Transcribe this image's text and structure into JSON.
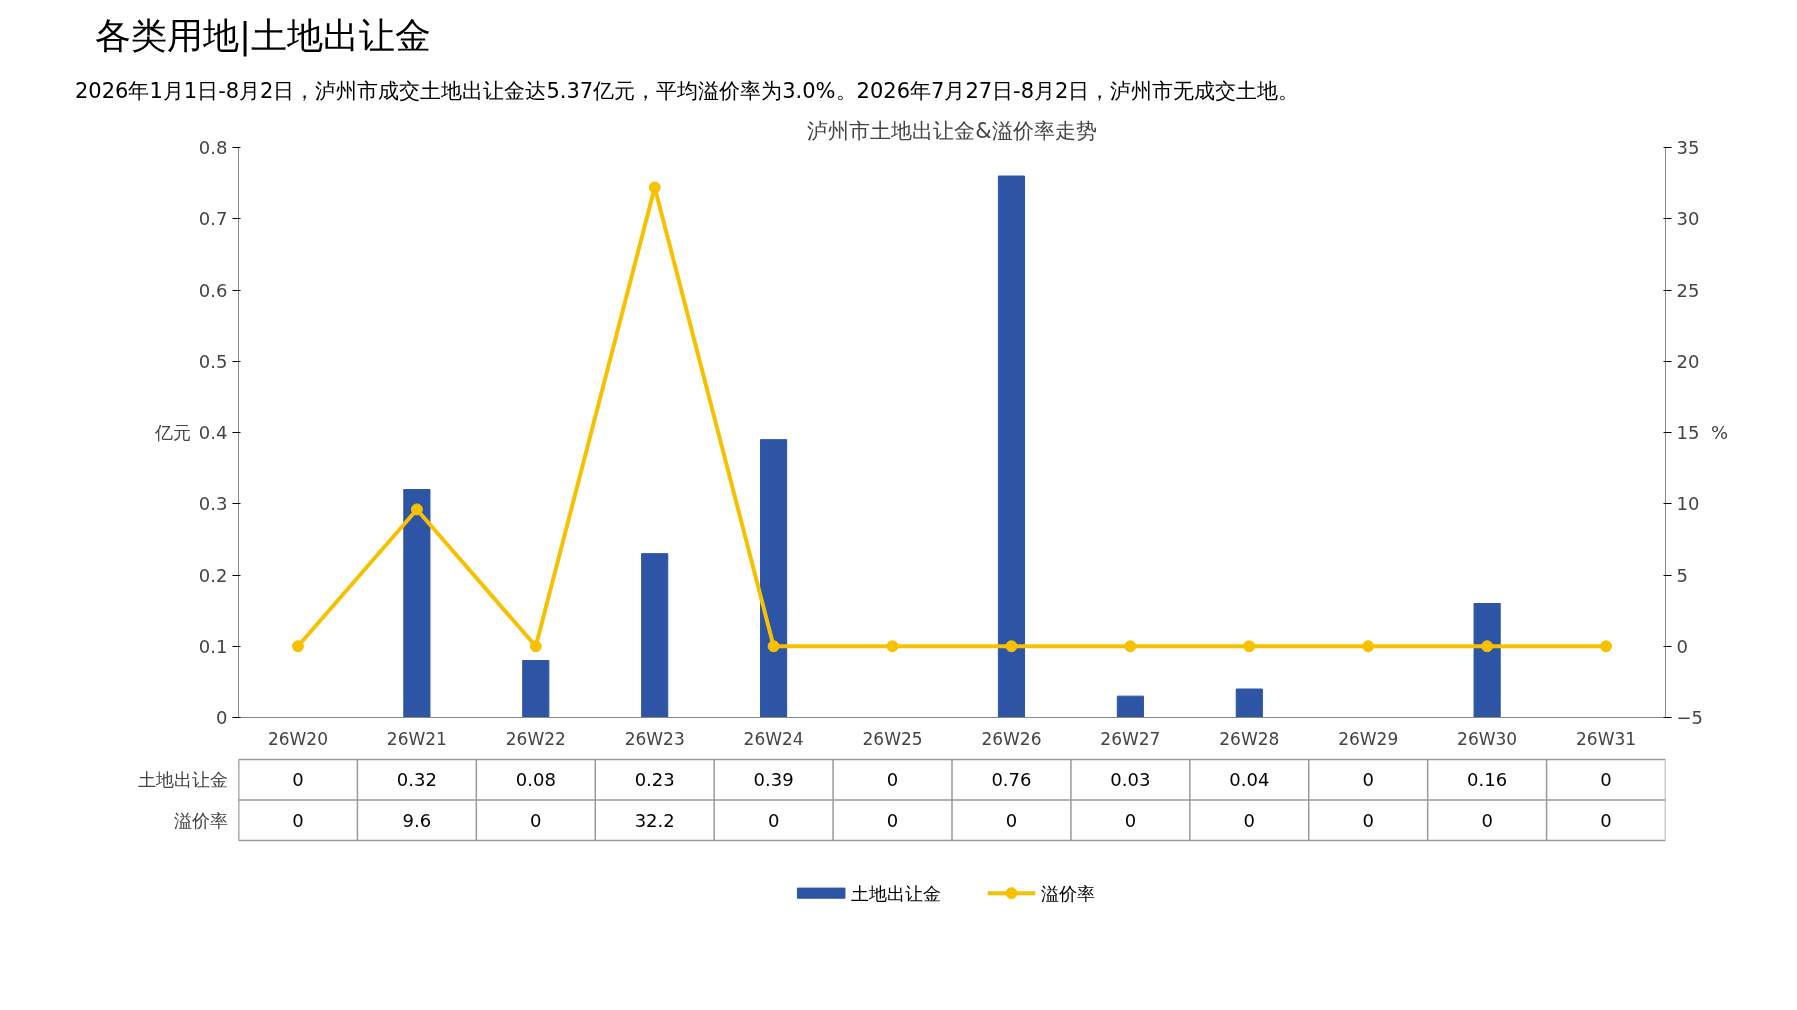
{
  "chart_data": {
    "type": "bar",
    "title": "泸州市土地出让金&溢价率走势",
    "subtitle": "2026年1月1日-8月2日，泸州市成交土地出让金达5.37亿元，平均溢价率为3.0%。2026年7月27日-8月2日，泸州市无成交土地。",
    "annotations": [
      "各类用地|土地出让金"
    ],
    "ylabel": "亿元",
    "y2label": "%",
    "categories": [
      "26W20",
      "26W21",
      "26W22",
      "26W23",
      "26W24",
      "26W25",
      "26W26",
      "26W27",
      "26W28",
      "26W29",
      "26W30",
      "26W31"
    ],
    "series": [
      {
        "name": "土地出让金",
        "color": "#2e55a5",
        "values": [
          0,
          0.32,
          0.08,
          0.23,
          0.39,
          0,
          0.76,
          0.03,
          0.04,
          0,
          0.16,
          0
        ]
      },
      {
        "name": "溢价率",
        "type": "line",
        "axis": "y2",
        "color": "#f7c100",
        "marker": "circle",
        "line_style": "solid",
        "values": [
          0,
          9.6,
          0,
          32.2,
          0,
          0,
          0,
          0,
          0,
          0,
          0,
          0
        ]
      }
    ],
    "ylim": [
      0,
      0.8
    ],
    "yticks": [
      0,
      0.1,
      0.2,
      0.3,
      0.4,
      0.5,
      0.6,
      0.7,
      0.8
    ],
    "y2lim": [
      -5,
      35
    ],
    "y2ticks": [
      -5,
      0,
      5,
      10,
      15,
      20,
      25,
      30,
      35
    ],
    "data_labels": true,
    "grid": false,
    "legend": "bottom"
  }
}
